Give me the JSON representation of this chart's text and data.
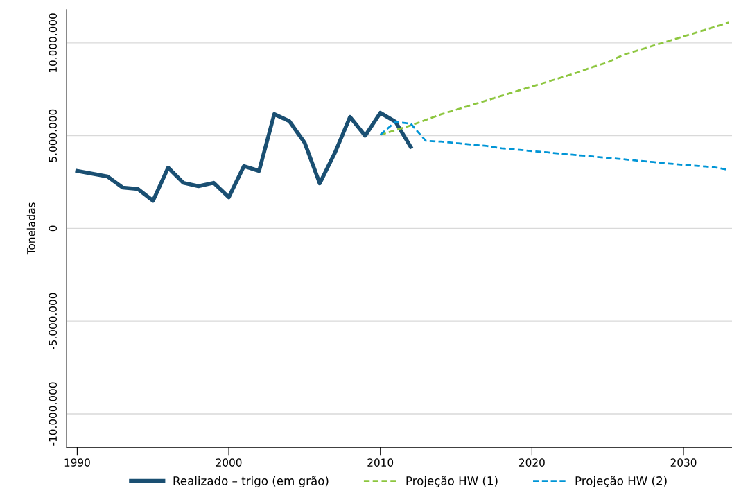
{
  "chart_data": {
    "type": "line",
    "ylabel": "Toneladas",
    "xlim": [
      1989.3,
      2033.2
    ],
    "xticks": [
      1990,
      2000,
      2010,
      2020,
      2030
    ],
    "ylim": [
      -11800000,
      11800000
    ],
    "yticks": [
      {
        "value": -10000000,
        "label": "-10.000.000"
      },
      {
        "value": -5000000,
        "label": "-5.000.000"
      },
      {
        "value": 0,
        "label": "0"
      },
      {
        "value": 5000000,
        "label": "5.000.000"
      },
      {
        "value": 10000000,
        "label": "10.000.000"
      }
    ],
    "grid": "y",
    "legend": "bottom",
    "series": [
      {
        "name": "Realizado – trigo (em grão)",
        "color": "#1a4f72",
        "line_style": "solid",
        "x": [
          1990,
          1991,
          1992,
          1993,
          1994,
          1995,
          1996,
          1997,
          1998,
          1999,
          2000,
          2001,
          2002,
          2003,
          2004,
          2005,
          2006,
          2007,
          2008,
          2009,
          2010,
          2011,
          2012
        ],
        "values": [
          3100000,
          2950000,
          2800000,
          2200000,
          2130000,
          1490000,
          3280000,
          2460000,
          2280000,
          2460000,
          1680000,
          3360000,
          3100000,
          6160000,
          5780000,
          4630000,
          2430000,
          4070000,
          6010000,
          5000000,
          6230000,
          5750000,
          4400000
        ]
      },
      {
        "name": "Projeção HW (1)",
        "color": "#8dc63f",
        "line_style": "dashed",
        "x": [
          2010,
          2011,
          2012,
          2013,
          2014,
          2015,
          2016,
          2017,
          2018,
          2019,
          2020,
          2021,
          2022,
          2023,
          2024,
          2025,
          2026,
          2027,
          2028,
          2029,
          2030,
          2031,
          2032,
          2033
        ],
        "values": [
          5050000,
          5300000,
          5550000,
          5850000,
          6150000,
          6400000,
          6650000,
          6900000,
          7150000,
          7400000,
          7650000,
          7900000,
          8150000,
          8400000,
          8700000,
          8950000,
          9350000,
          9600000,
          9850000,
          10100000,
          10350000,
          10600000,
          10850000,
          11100000
        ]
      },
      {
        "name": "Projeção HW (2)",
        "color": "#0095d6",
        "line_style": "dashed",
        "x": [
          2010,
          2011,
          2012,
          2013,
          2014,
          2015,
          2016,
          2017,
          2018,
          2019,
          2020,
          2021,
          2022,
          2023,
          2024,
          2025,
          2026,
          2027,
          2028,
          2029,
          2030,
          2031,
          2032,
          2033
        ],
        "values": [
          5050000,
          5750000,
          5650000,
          4720000,
          4680000,
          4600000,
          4520000,
          4450000,
          4320000,
          4250000,
          4170000,
          4100000,
          4020000,
          3950000,
          3880000,
          3800000,
          3730000,
          3650000,
          3580000,
          3500000,
          3430000,
          3370000,
          3300000,
          3150000
        ]
      }
    ]
  }
}
